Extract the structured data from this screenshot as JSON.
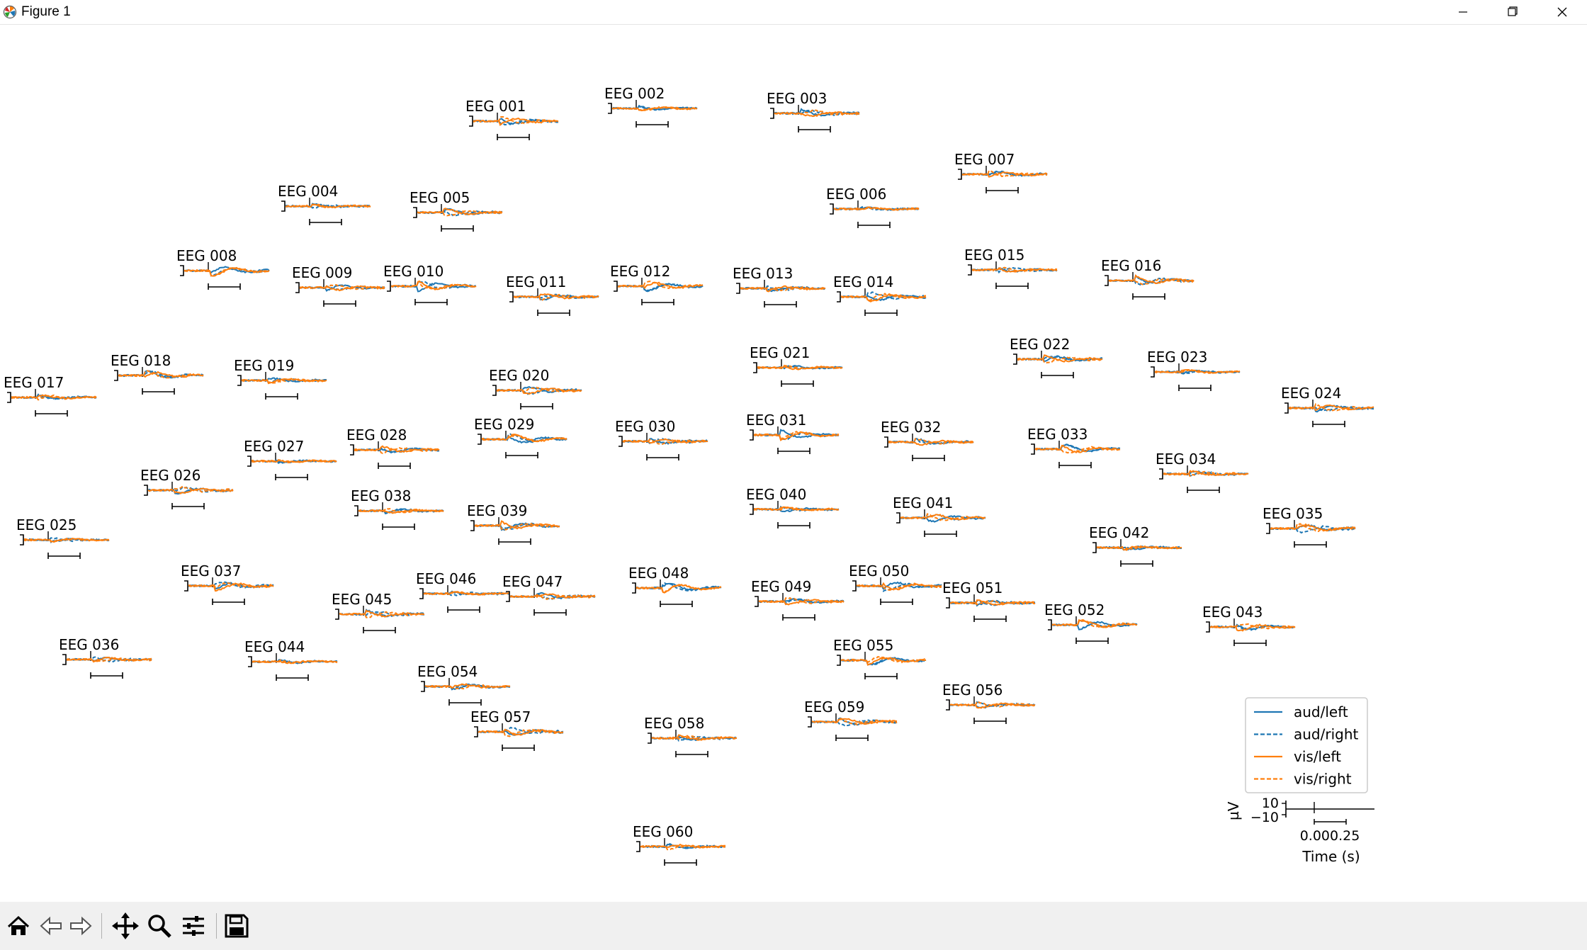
{
  "window": {
    "title": "Figure 1"
  },
  "chart_data": {
    "type": "line",
    "layout": "topomap-grid",
    "channels": [
      "EEG 001",
      "EEG 002",
      "EEG 003",
      "EEG 004",
      "EEG 005",
      "EEG 006",
      "EEG 007",
      "EEG 008",
      "EEG 009",
      "EEG 010",
      "EEG 011",
      "EEG 012",
      "EEG 013",
      "EEG 014",
      "EEG 015",
      "EEG 016",
      "EEG 017",
      "EEG 018",
      "EEG 019",
      "EEG 020",
      "EEG 021",
      "EEG 022",
      "EEG 023",
      "EEG 024",
      "EEG 025",
      "EEG 026",
      "EEG 027",
      "EEG 028",
      "EEG 029",
      "EEG 030",
      "EEG 031",
      "EEG 032",
      "EEG 033",
      "EEG 034",
      "EEG 035",
      "EEG 036",
      "EEG 037",
      "EEG 038",
      "EEG 039",
      "EEG 040",
      "EEG 041",
      "EEG 042",
      "EEG 043",
      "EEG 044",
      "EEG 045",
      "EEG 046",
      "EEG 047",
      "EEG 048",
      "EEG 049",
      "EEG 050",
      "EEG 051",
      "EEG 052",
      "EEG 054",
      "EEG 055",
      "EEG 056",
      "EEG 057",
      "EEG 058",
      "EEG 059",
      "EEG 060"
    ],
    "series": [
      {
        "name": "aud/left",
        "color": "#1f77b4",
        "dash": "solid"
      },
      {
        "name": "aud/right",
        "color": "#1f77b4",
        "dash": "dashed"
      },
      {
        "name": "vis/left",
        "color": "#ff7f0e",
        "dash": "solid"
      },
      {
        "name": "vis/right",
        "color": "#ff7f0e",
        "dash": "dashed"
      }
    ],
    "legend_position": "lower-right",
    "scale_axes": {
      "ylabel": "µV",
      "yticks": [
        "10",
        "−10"
      ],
      "xtick": "0.000.25",
      "xlabel": "Time (s)",
      "ylim": [
        -10,
        10
      ],
      "xlim": [
        -0.1,
        0.5
      ]
    }
  },
  "toolbar": {
    "buttons": [
      {
        "name": "home",
        "icon": "home-icon"
      },
      {
        "name": "back",
        "icon": "arrow-left-icon"
      },
      {
        "name": "forward",
        "icon": "arrow-right-icon"
      },
      {
        "name": "pan",
        "icon": "move-icon"
      },
      {
        "name": "zoom",
        "icon": "magnifier-icon"
      },
      {
        "name": "configure",
        "icon": "sliders-icon"
      },
      {
        "name": "save",
        "icon": "floppy-disk-icon"
      }
    ]
  },
  "colors": {
    "aud": "#1f77b4",
    "vis": "#ff7f0e",
    "toolbar_bg": "#f0f0f0"
  }
}
